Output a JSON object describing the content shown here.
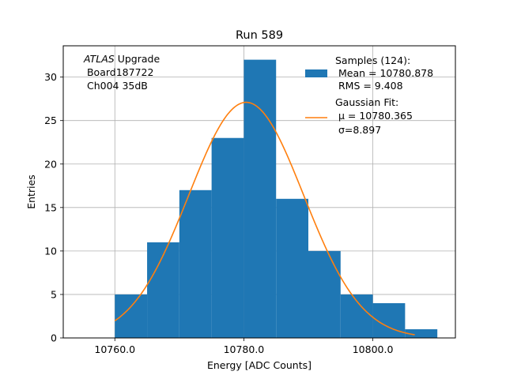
{
  "chart_data": {
    "type": "bar",
    "title": "Run 589",
    "xlabel": "Energy [ADC Counts]",
    "ylabel": "Entries",
    "xlim": [
      10752.0,
      10812.8
    ],
    "ylim": [
      0,
      33.6
    ],
    "grid": true,
    "xticks": [
      10760.0,
      10780.0,
      10800.0
    ],
    "xtick_labels": [
      "10760.0",
      "10780.0",
      "10800.0"
    ],
    "yticks": [
      0,
      5,
      10,
      15,
      20,
      25,
      30
    ],
    "yticks_labels": [
      "0",
      "5",
      "10",
      "15",
      "20",
      "25",
      "30"
    ],
    "bins": [
      {
        "x0": 10760,
        "x1": 10765,
        "count": 5
      },
      {
        "x0": 10765,
        "x1": 10770,
        "count": 11
      },
      {
        "x0": 10770,
        "x1": 10775,
        "count": 17
      },
      {
        "x0": 10775,
        "x1": 10780,
        "count": 23
      },
      {
        "x0": 10780,
        "x1": 10785,
        "count": 32
      },
      {
        "x0": 10785,
        "x1": 10790,
        "count": 16
      },
      {
        "x0": 10790,
        "x1": 10795,
        "count": 10
      },
      {
        "x0": 10795,
        "x1": 10800,
        "count": 5
      },
      {
        "x0": 10800,
        "x1": 10805,
        "count": 4
      },
      {
        "x0": 10805,
        "x1": 10810,
        "count": 1
      }
    ],
    "fit": {
      "mu": 10780.365,
      "sigma": 8.897,
      "amplitude": 27.1,
      "x_range": [
        10760.0,
        10806.5
      ]
    },
    "colors": {
      "bars": "#1f77b4",
      "fit": "#ff7f0e",
      "grid": "#b0b0b0"
    },
    "legend": {
      "placement": "top-right",
      "samples_lines": [
        "Samples (124):",
        " Mean = 10780.878",
        " RMS = 9.408"
      ],
      "fit_lines": [
        "Gaussian Fit:",
        " μ = 10780.365",
        " σ=8.897"
      ]
    },
    "annotation": {
      "italic": "ATLAS",
      "rest": " Upgrade",
      "line2": " Board187722",
      "line3": " Ch004 35dB"
    }
  }
}
